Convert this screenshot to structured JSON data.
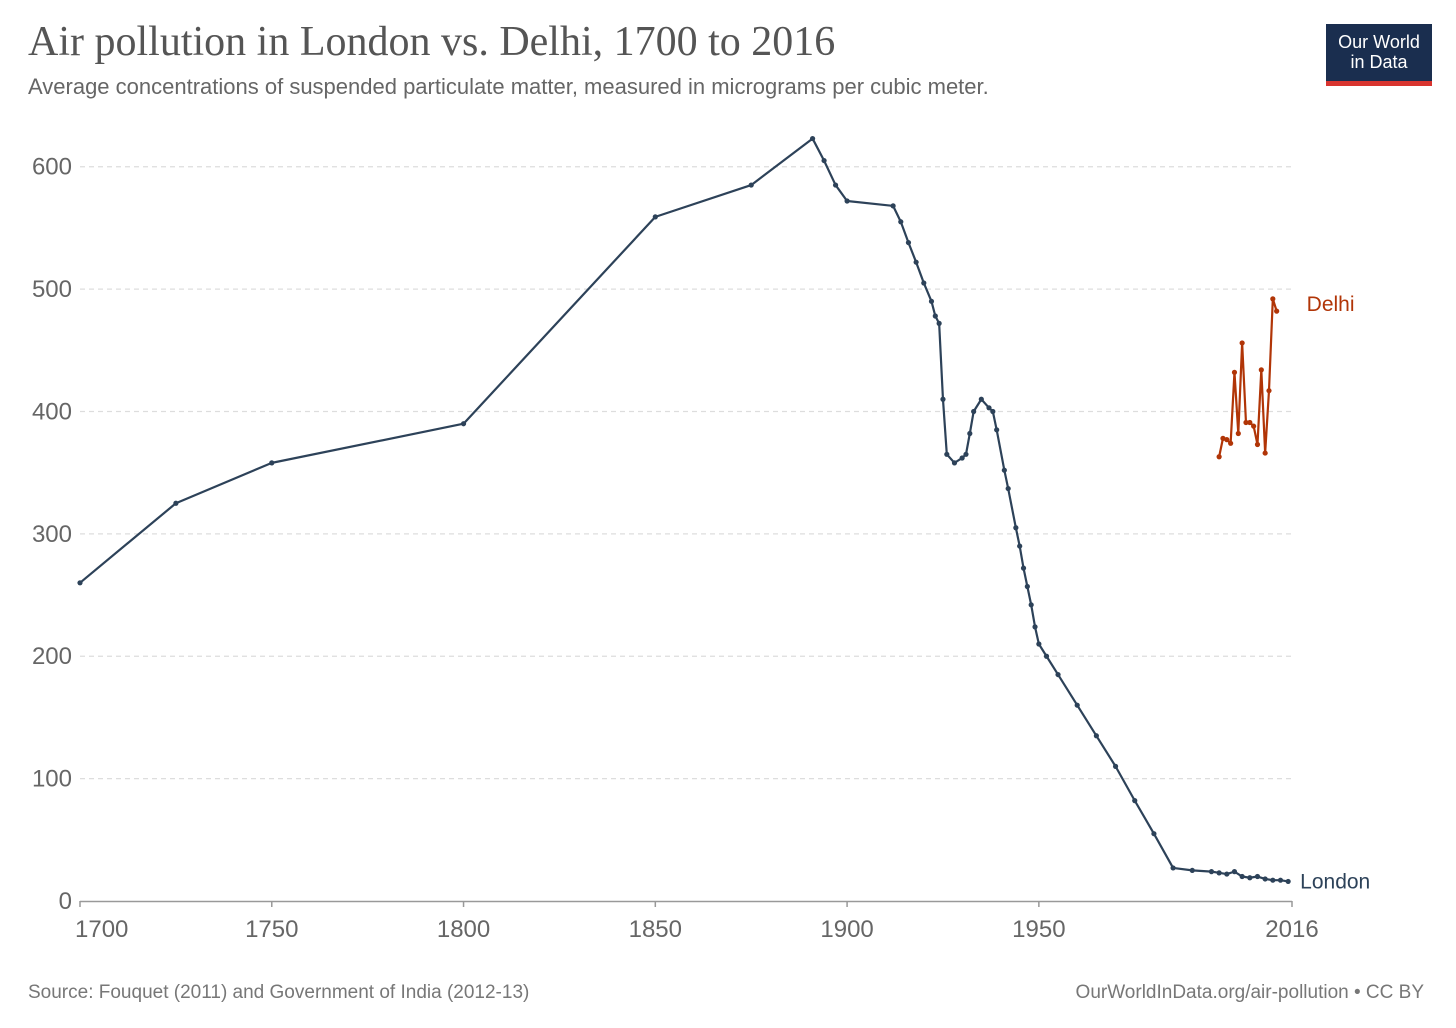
{
  "header": {
    "title": "Air pollution in London vs. Delhi, 1700 to 2016",
    "subtitle": "Average concentrations of suspended particulate matter, measured in micrograms per cubic meter."
  },
  "logo": {
    "line1": "Our World",
    "line2": "in Data"
  },
  "footer": {
    "source": "Source: Fouquet (2011) and Government of India (2012-13)",
    "credit": "OurWorldInData.org/air-pollution • CC BY"
  },
  "colors": {
    "london": "#2d4259",
    "delhi": "#b13507",
    "grid": "#dddddd",
    "axis": "#999999"
  },
  "chart_data": {
    "type": "line",
    "xlim": [
      1700,
      2016
    ],
    "ylim": [
      0,
      630
    ],
    "x_ticks": [
      "1700",
      "1750",
      "1800",
      "1850",
      "1900",
      "1950",
      "2016"
    ],
    "y_ticks": [
      "0",
      "100",
      "200",
      "300",
      "400",
      "500",
      "600"
    ],
    "grid": true,
    "series": [
      {
        "name": "London",
        "color": "#2d4259",
        "points": [
          [
            1700,
            260
          ],
          [
            1725,
            325
          ],
          [
            1750,
            358
          ],
          [
            1800,
            390
          ],
          [
            1850,
            559
          ],
          [
            1875,
            585
          ],
          [
            1891,
            623
          ],
          [
            1894,
            605
          ],
          [
            1897,
            585
          ],
          [
            1900,
            572
          ],
          [
            1912,
            568
          ],
          [
            1914,
            555
          ],
          [
            1916,
            538
          ],
          [
            1918,
            522
          ],
          [
            1920,
            505
          ],
          [
            1922,
            490
          ],
          [
            1923,
            478
          ],
          [
            1924,
            472
          ],
          [
            1925,
            410
          ],
          [
            1926,
            365
          ],
          [
            1928,
            358
          ],
          [
            1930,
            362
          ],
          [
            1931,
            365
          ],
          [
            1932,
            382
          ],
          [
            1933,
            400
          ],
          [
            1935,
            410
          ],
          [
            1937,
            403
          ],
          [
            1938,
            400
          ],
          [
            1939,
            385
          ],
          [
            1941,
            352
          ],
          [
            1942,
            337
          ],
          [
            1944,
            305
          ],
          [
            1945,
            290
          ],
          [
            1946,
            272
          ],
          [
            1947,
            257
          ],
          [
            1948,
            242
          ],
          [
            1949,
            224
          ],
          [
            1950,
            210
          ],
          [
            1952,
            200
          ],
          [
            1955,
            185
          ],
          [
            1960,
            160
          ],
          [
            1965,
            135
          ],
          [
            1970,
            110
          ],
          [
            1975,
            82
          ],
          [
            1980,
            55
          ],
          [
            1985,
            27
          ],
          [
            1990,
            25
          ],
          [
            1995,
            24
          ],
          [
            1997,
            23
          ],
          [
            1999,
            22
          ],
          [
            2001,
            24
          ],
          [
            2003,
            20
          ],
          [
            2005,
            19
          ],
          [
            2007,
            20
          ],
          [
            2009,
            18
          ],
          [
            2011,
            17
          ],
          [
            2013,
            17
          ],
          [
            2015,
            16
          ]
        ]
      },
      {
        "name": "Delhi",
        "color": "#b13507",
        "points": [
          [
            1997,
            363
          ],
          [
            1998,
            378
          ],
          [
            1999,
            377
          ],
          [
            2000,
            374
          ],
          [
            2001,
            432
          ],
          [
            2002,
            382
          ],
          [
            2003,
            456
          ],
          [
            2004,
            391
          ],
          [
            2005,
            391
          ],
          [
            2006,
            388
          ],
          [
            2007,
            373
          ],
          [
            2008,
            434
          ],
          [
            2009,
            366
          ],
          [
            2010,
            417
          ],
          [
            2011,
            492
          ],
          [
            2012,
            482
          ]
        ]
      }
    ]
  }
}
